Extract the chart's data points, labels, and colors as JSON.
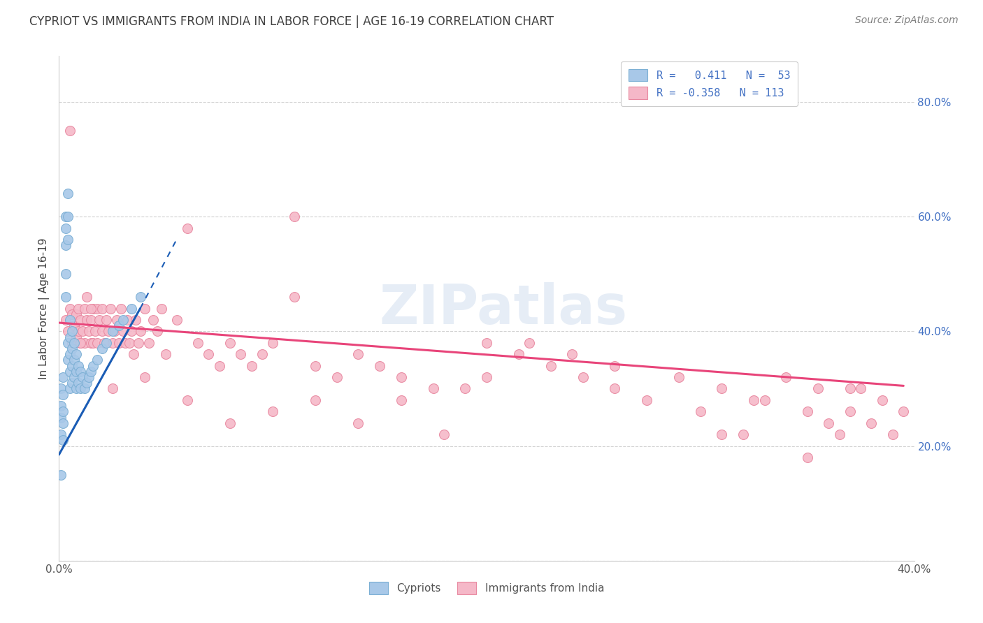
{
  "title": "CYPRIOT VS IMMIGRANTS FROM INDIA IN LABOR FORCE | AGE 16-19 CORRELATION CHART",
  "source_text": "Source: ZipAtlas.com",
  "ylabel": "In Labor Force | Age 16-19",
  "watermark": "ZIPatlas",
  "xlim": [
    0.0,
    0.4
  ],
  "ylim": [
    0.0,
    0.88
  ],
  "yticks": [
    0.0,
    0.2,
    0.4,
    0.6,
    0.8
  ],
  "ytick_labels": [
    "",
    "20.0%",
    "40.0%",
    "60.0%",
    "80.0%"
  ],
  "xticks": [
    0.0,
    0.1,
    0.2,
    0.3,
    0.4
  ],
  "xtick_labels": [
    "0.0%",
    "",
    "",
    "",
    "40.0%"
  ],
  "cypriot_color": "#A8C8E8",
  "cypriot_edge": "#7BAFD4",
  "india_color": "#F5B8C8",
  "india_edge": "#E888A0",
  "trend_cypriot_color": "#1A5CB5",
  "trend_india_color": "#E8457A",
  "legend_text_color": "#4472C4",
  "title_color": "#404040",
  "source_color": "#808080",
  "ylabel_color": "#404040",
  "tick_color": "#4472C4",
  "grid_color": "#C0C0C0",
  "cypriot_x": [
    0.001,
    0.001,
    0.001,
    0.001,
    0.002,
    0.002,
    0.002,
    0.002,
    0.002,
    0.003,
    0.003,
    0.003,
    0.003,
    0.003,
    0.004,
    0.004,
    0.004,
    0.004,
    0.004,
    0.005,
    0.005,
    0.005,
    0.005,
    0.005,
    0.006,
    0.006,
    0.006,
    0.006,
    0.007,
    0.007,
    0.007,
    0.008,
    0.008,
    0.008,
    0.009,
    0.009,
    0.01,
    0.01,
    0.011,
    0.012,
    0.013,
    0.014,
    0.015,
    0.016,
    0.018,
    0.02,
    0.022,
    0.025,
    0.028,
    0.03,
    0.034,
    0.038,
    0.001
  ],
  "cypriot_y": [
    0.3,
    0.27,
    0.25,
    0.22,
    0.32,
    0.29,
    0.26,
    0.24,
    0.21,
    0.6,
    0.58,
    0.55,
    0.5,
    0.46,
    0.64,
    0.6,
    0.56,
    0.38,
    0.35,
    0.42,
    0.39,
    0.36,
    0.33,
    0.3,
    0.4,
    0.37,
    0.34,
    0.31,
    0.38,
    0.35,
    0.32,
    0.36,
    0.33,
    0.3,
    0.34,
    0.31,
    0.33,
    0.3,
    0.32,
    0.3,
    0.31,
    0.32,
    0.33,
    0.34,
    0.35,
    0.37,
    0.38,
    0.4,
    0.41,
    0.42,
    0.44,
    0.46,
    0.15
  ],
  "india_x": [
    0.003,
    0.004,
    0.005,
    0.006,
    0.006,
    0.007,
    0.008,
    0.008,
    0.009,
    0.009,
    0.01,
    0.01,
    0.011,
    0.012,
    0.012,
    0.013,
    0.013,
    0.014,
    0.015,
    0.015,
    0.016,
    0.016,
    0.017,
    0.018,
    0.018,
    0.019,
    0.02,
    0.02,
    0.021,
    0.022,
    0.023,
    0.024,
    0.025,
    0.026,
    0.027,
    0.028,
    0.029,
    0.03,
    0.031,
    0.032,
    0.033,
    0.034,
    0.035,
    0.036,
    0.037,
    0.038,
    0.04,
    0.042,
    0.044,
    0.046,
    0.048,
    0.05,
    0.055,
    0.06,
    0.065,
    0.07,
    0.075,
    0.08,
    0.085,
    0.09,
    0.095,
    0.1,
    0.11,
    0.12,
    0.13,
    0.14,
    0.15,
    0.16,
    0.175,
    0.19,
    0.2,
    0.215,
    0.23,
    0.245,
    0.26,
    0.275,
    0.29,
    0.31,
    0.325,
    0.34,
    0.005,
    0.015,
    0.11,
    0.22,
    0.24,
    0.26,
    0.31,
    0.33,
    0.35,
    0.355,
    0.36,
    0.365,
    0.37,
    0.375,
    0.38,
    0.385,
    0.39,
    0.395,
    0.01,
    0.025,
    0.04,
    0.06,
    0.08,
    0.1,
    0.12,
    0.14,
    0.16,
    0.18,
    0.2,
    0.3,
    0.32,
    0.35,
    0.37
  ],
  "india_y": [
    0.42,
    0.4,
    0.44,
    0.38,
    0.43,
    0.41,
    0.39,
    0.43,
    0.4,
    0.44,
    0.38,
    0.42,
    0.4,
    0.44,
    0.38,
    0.42,
    0.46,
    0.4,
    0.38,
    0.42,
    0.44,
    0.38,
    0.4,
    0.44,
    0.38,
    0.42,
    0.4,
    0.44,
    0.38,
    0.42,
    0.4,
    0.44,
    0.38,
    0.4,
    0.42,
    0.38,
    0.44,
    0.4,
    0.38,
    0.42,
    0.38,
    0.4,
    0.36,
    0.42,
    0.38,
    0.4,
    0.44,
    0.38,
    0.42,
    0.4,
    0.44,
    0.36,
    0.42,
    0.58,
    0.38,
    0.36,
    0.34,
    0.38,
    0.36,
    0.34,
    0.36,
    0.38,
    0.46,
    0.34,
    0.32,
    0.36,
    0.34,
    0.32,
    0.3,
    0.3,
    0.38,
    0.36,
    0.34,
    0.32,
    0.3,
    0.28,
    0.32,
    0.3,
    0.28,
    0.32,
    0.75,
    0.44,
    0.6,
    0.38,
    0.36,
    0.34,
    0.22,
    0.28,
    0.26,
    0.3,
    0.24,
    0.22,
    0.26,
    0.3,
    0.24,
    0.28,
    0.22,
    0.26,
    0.38,
    0.3,
    0.32,
    0.28,
    0.24,
    0.26,
    0.28,
    0.24,
    0.28,
    0.22,
    0.32,
    0.26,
    0.22,
    0.18,
    0.3
  ],
  "trend_cy_x0": 0.0,
  "trend_cy_x1": 0.038,
  "trend_cy_y0": 0.185,
  "trend_cy_y1": 0.44,
  "trend_cy_dash_x0": 0.038,
  "trend_cy_dash_x1": 0.055,
  "trend_cy_dash_y0": 0.44,
  "trend_cy_dash_y1": 0.56,
  "trend_india_x0": 0.0,
  "trend_india_x1": 0.395,
  "trend_india_y0": 0.415,
  "trend_india_y1": 0.305
}
